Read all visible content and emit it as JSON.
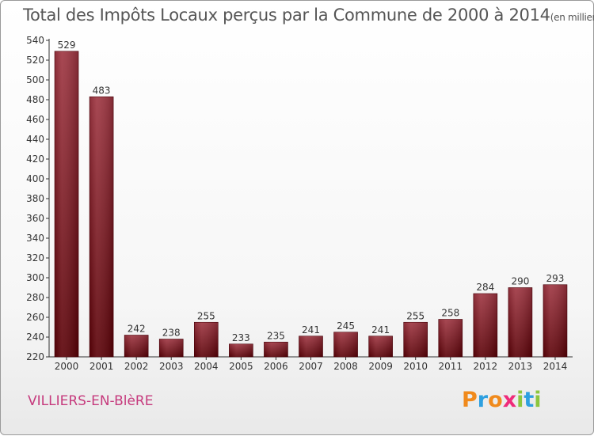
{
  "title": "Total des Impôts Locaux perçus par la Commune de 2000 à 2014",
  "unit": "(en milliers d'€)",
  "commune": "VILLIERS-EN-BlèRE",
  "logo": {
    "letters": [
      "P",
      "r",
      "o",
      "x",
      "i",
      "t",
      "i"
    ],
    "colors": [
      "#f08a1c",
      "#2ea0e0",
      "#f08a1c",
      "#ef2b7a",
      "#8cc63f",
      "#2ea0e0",
      "#8cc63f"
    ]
  },
  "chart_data": {
    "type": "bar",
    "categories": [
      "2000",
      "2001",
      "2002",
      "2003",
      "2004",
      "2005",
      "2006",
      "2007",
      "2008",
      "2009",
      "2010",
      "2011",
      "2012",
      "2013",
      "2014"
    ],
    "values": [
      529,
      483,
      242,
      238,
      255,
      233,
      235,
      241,
      245,
      241,
      255,
      258,
      284,
      290,
      293
    ],
    "ylim": [
      220,
      540
    ],
    "yticks": [
      220,
      240,
      260,
      280,
      300,
      320,
      340,
      360,
      380,
      400,
      420,
      440,
      460,
      480,
      500,
      520,
      540
    ],
    "grid": false,
    "bar_color": "#8e1a2c"
  }
}
